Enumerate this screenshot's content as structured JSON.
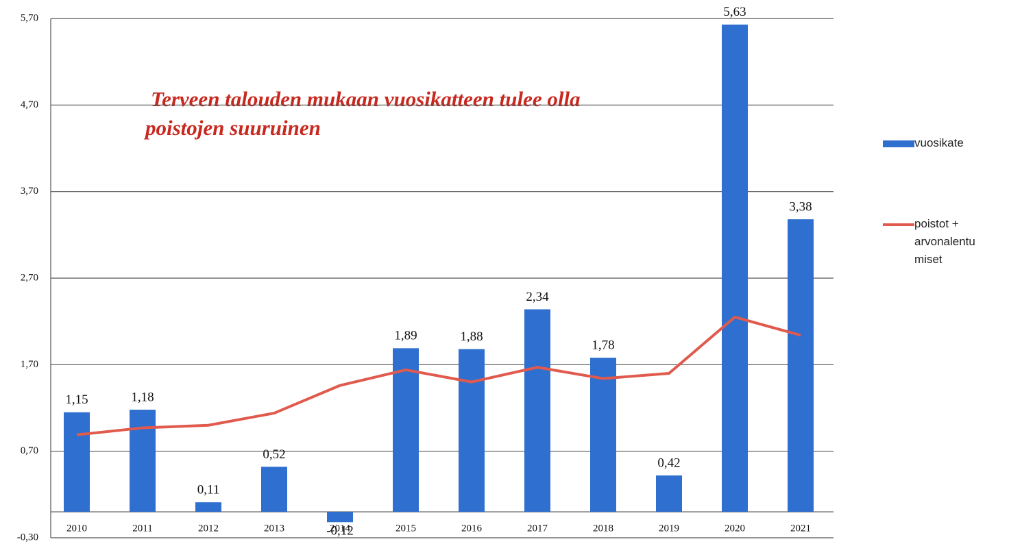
{
  "chart_data": {
    "type": "bar-line",
    "annotation": [
      "Terveen talouden mukaan vuosikatteen tulee olla",
      "poistojen suuruinen"
    ],
    "categories": [
      "2010",
      "2011",
      "2012",
      "2013",
      "2014",
      "2015",
      "2016",
      "2017",
      "2018",
      "2019",
      "2020",
      "2021"
    ],
    "series": [
      {
        "name": "vuosikate",
        "type": "bar",
        "color": "#2f6fcf",
        "values": [
          1.15,
          1.18,
          0.11,
          0.52,
          -0.12,
          1.89,
          1.88,
          2.34,
          1.78,
          0.42,
          5.63,
          3.38
        ],
        "value_labels": [
          "1,15",
          "1,18",
          "0,11",
          "0,52",
          "-0,12",
          "1,89",
          "1,88",
          "2,34",
          "1,78",
          "0,42",
          "5,63",
          "3,38"
        ]
      },
      {
        "name": "poistot + arvonalentumiset",
        "type": "line",
        "color": "#e05a4e",
        "values": [
          0.89,
          0.97,
          1.0,
          1.14,
          1.46,
          1.64,
          1.5,
          1.67,
          1.54,
          1.6,
          2.25,
          2.04
        ]
      }
    ],
    "ylim": [
      -0.3,
      5.7
    ],
    "yticks": [
      {
        "value": -0.3,
        "label": "-0,30"
      },
      {
        "value": 0.7,
        "label": "0,70"
      },
      {
        "value": 1.7,
        "label": "1,70"
      },
      {
        "value": 2.7,
        "label": "2,70"
      },
      {
        "value": 3.7,
        "label": "3,70"
      },
      {
        "value": 4.7,
        "label": "4,70"
      },
      {
        "value": 5.7,
        "label": "5,70"
      }
    ],
    "grid": true,
    "legend": "right"
  }
}
